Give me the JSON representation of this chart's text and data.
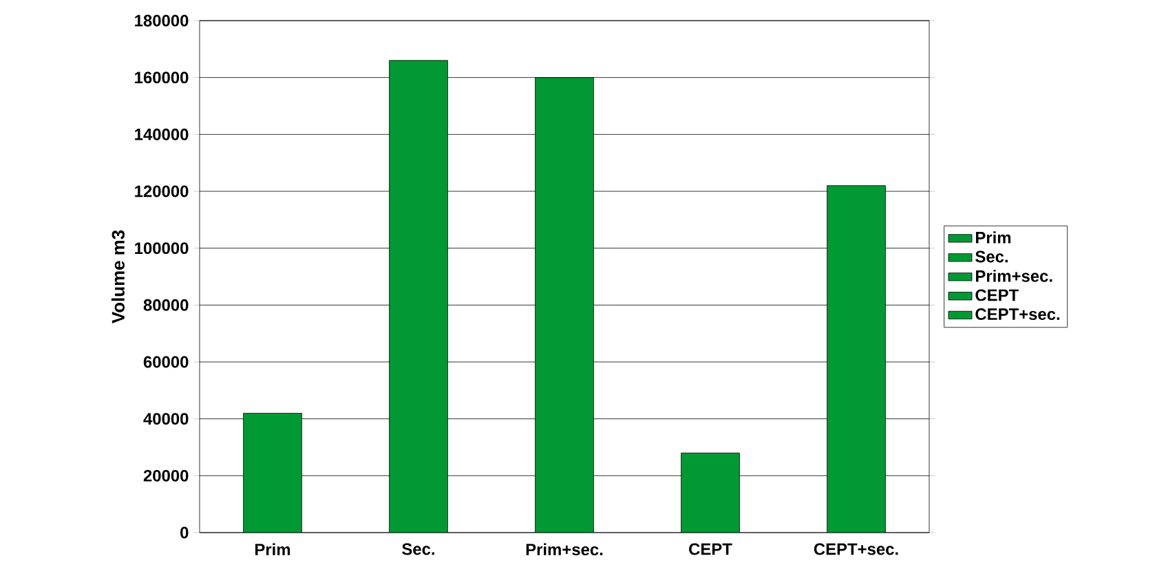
{
  "chart_data": {
    "type": "bar",
    "ylabel": "Volume m3",
    "categories": [
      "Prim",
      "Sec.",
      "Prim+sec.",
      "CEPT",
      "CEPT+sec."
    ],
    "series": [
      {
        "name": "Prim",
        "color": "#009933",
        "values": [
          42000,
          null,
          null,
          null,
          null
        ]
      },
      {
        "name": "Sec.",
        "color": "#009933",
        "values": [
          null,
          166000,
          null,
          null,
          null
        ]
      },
      {
        "name": "Prim+sec.",
        "color": "#009933",
        "values": [
          null,
          null,
          160000,
          null,
          null
        ]
      },
      {
        "name": "CEPT",
        "color": "#009933",
        "values": [
          null,
          null,
          null,
          28000,
          null
        ]
      },
      {
        "name": "CEPT+sec.",
        "color": "#009933",
        "values": [
          null,
          null,
          null,
          null,
          122000
        ]
      }
    ],
    "ylim": [
      0,
      180000
    ],
    "yticks": [
      0,
      20000,
      40000,
      60000,
      80000,
      100000,
      120000,
      140000,
      160000,
      180000
    ],
    "grid": "y",
    "legend": "right"
  }
}
